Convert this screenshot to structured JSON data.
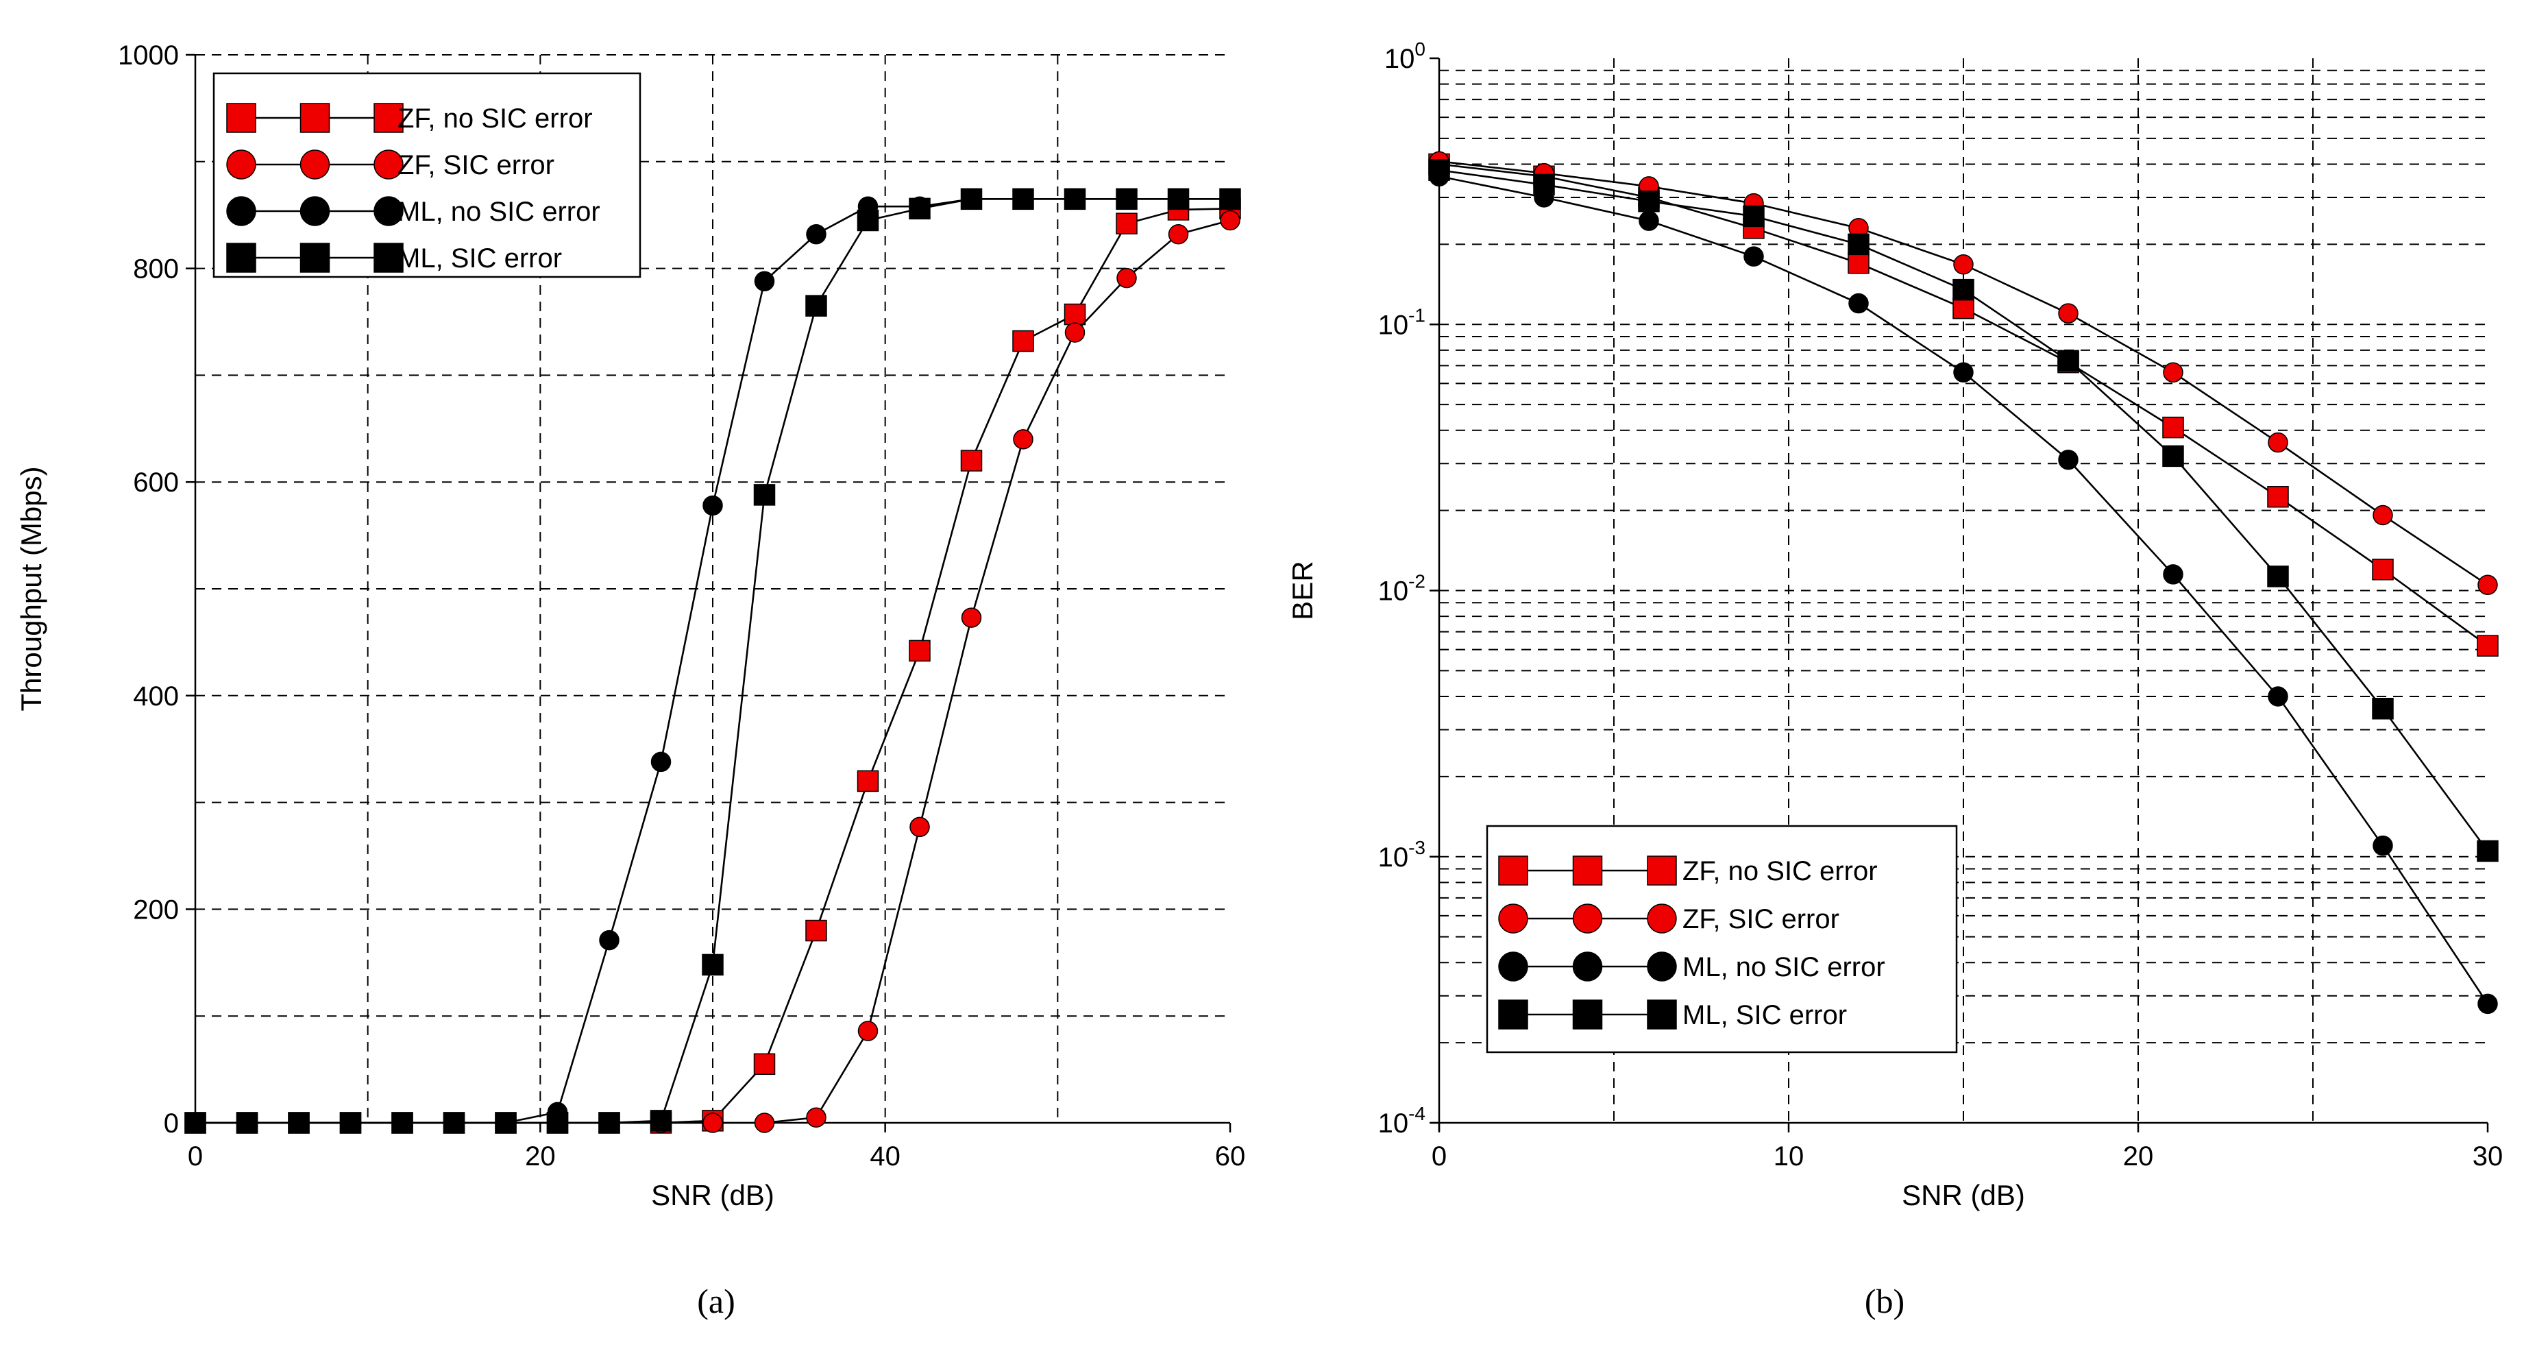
{
  "chart_data": [
    {
      "id": "a",
      "type": "line",
      "caption": "(a)",
      "xlabel": "SNR (dB)",
      "ylabel": "Throughput (Mbps)",
      "xlim": [
        0,
        60
      ],
      "ylim": [
        0,
        1000
      ],
      "x_ticks": [
        0,
        20,
        40,
        60
      ],
      "x_tick_labels": [
        "0",
        "20",
        "40",
        "60"
      ],
      "y_ticks": [
        0,
        200,
        400,
        600,
        800,
        1000
      ],
      "y_tick_labels": [
        "0",
        "200",
        "400",
        "600",
        "800",
        "1000"
      ],
      "grid": true,
      "legend_position": "top-left",
      "series": [
        {
          "name": "ZF, no SIC error",
          "marker": "square",
          "color": "#ee0000",
          "x": [
            0,
            3,
            6,
            9,
            12,
            15,
            18,
            21,
            24,
            27,
            30,
            33,
            36,
            39,
            42,
            45,
            48,
            51,
            54,
            57,
            60
          ],
          "y": [
            0,
            0,
            0,
            0,
            0,
            0,
            0,
            0,
            0,
            0,
            2,
            55,
            180,
            320,
            442,
            620,
            732,
            757,
            842,
            855,
            856
          ]
        },
        {
          "name": "ZF, SIC error",
          "marker": "circle",
          "color": "#ee0000",
          "x": [
            0,
            3,
            6,
            9,
            12,
            15,
            18,
            21,
            24,
            27,
            30,
            33,
            36,
            39,
            42,
            45,
            48,
            51,
            54,
            57,
            60
          ],
          "y": [
            0,
            0,
            0,
            0,
            0,
            0,
            0,
            0,
            0,
            0,
            0,
            0,
            5,
            86,
            277,
            473,
            640,
            740,
            791,
            832,
            845
          ]
        },
        {
          "name": "ML, no SIC error",
          "marker": "circle",
          "color": "#000000",
          "x": [
            0,
            3,
            6,
            9,
            12,
            15,
            18,
            21,
            24,
            27,
            30,
            33,
            36,
            39,
            42,
            45,
            48,
            51,
            54,
            57,
            60
          ],
          "y": [
            0,
            0,
            0,
            0,
            0,
            0,
            0,
            10,
            171,
            338,
            578,
            788,
            832,
            858,
            858,
            865,
            865,
            865,
            865,
            865,
            865
          ]
        },
        {
          "name": "ML, SIC error",
          "marker": "square",
          "color": "#000000",
          "x": [
            0,
            3,
            6,
            9,
            12,
            15,
            18,
            21,
            24,
            27,
            30,
            33,
            36,
            39,
            42,
            45,
            48,
            51,
            54,
            57,
            60
          ],
          "y": [
            0,
            0,
            0,
            0,
            0,
            0,
            0,
            0,
            0,
            2,
            148,
            588,
            765,
            845,
            856,
            865,
            865,
            865,
            865,
            865,
            865
          ]
        }
      ]
    },
    {
      "id": "b",
      "type": "line",
      "caption": "(b)",
      "xlabel": "SNR (dB)",
      "ylabel": "BER",
      "xlim": [
        0,
        30
      ],
      "ylim": [
        0.0001,
        1
      ],
      "yscale": "log",
      "x_ticks": [
        0,
        10,
        20,
        30
      ],
      "x_tick_labels": [
        "0",
        "10",
        "20",
        "30"
      ],
      "y_tick_exponents": [
        "-4",
        "-3",
        "-2",
        "-1",
        "0"
      ],
      "y_tick_base": "10",
      "grid": true,
      "legend_position": "bottom-center",
      "series": [
        {
          "name": "ZF, no SIC error",
          "marker": "square",
          "color": "#ee0000",
          "x": [
            0,
            3,
            6,
            9,
            12,
            15,
            18,
            21,
            24,
            27,
            30
          ],
          "y": [
            0.4,
            0.36,
            0.3,
            0.23,
            0.17,
            0.115,
            0.072,
            0.041,
            0.0225,
            0.012,
            0.0062
          ]
        },
        {
          "name": "ZF, SIC error",
          "marker": "circle",
          "color": "#ee0000",
          "x": [
            0,
            3,
            6,
            9,
            12,
            15,
            18,
            21,
            24,
            27,
            30
          ],
          "y": [
            0.41,
            0.37,
            0.33,
            0.285,
            0.23,
            0.168,
            0.11,
            0.066,
            0.036,
            0.0192,
            0.0105
          ]
        },
        {
          "name": "ML, no SIC error",
          "marker": "circle",
          "color": "#000000",
          "x": [
            0,
            3,
            6,
            9,
            12,
            15,
            18,
            21,
            24,
            27,
            30
          ],
          "y": [
            0.36,
            0.3,
            0.245,
            0.18,
            0.12,
            0.066,
            0.031,
            0.0115,
            0.004,
            0.0011,
            0.00028
          ]
        },
        {
          "name": "ML, SIC error",
          "marker": "square",
          "color": "#000000",
          "x": [
            0,
            3,
            6,
            9,
            12,
            15,
            18,
            21,
            24,
            27,
            30
          ],
          "y": [
            0.38,
            0.335,
            0.29,
            0.255,
            0.2,
            0.135,
            0.073,
            0.032,
            0.0113,
            0.0036,
            0.00105
          ]
        }
      ]
    }
  ]
}
